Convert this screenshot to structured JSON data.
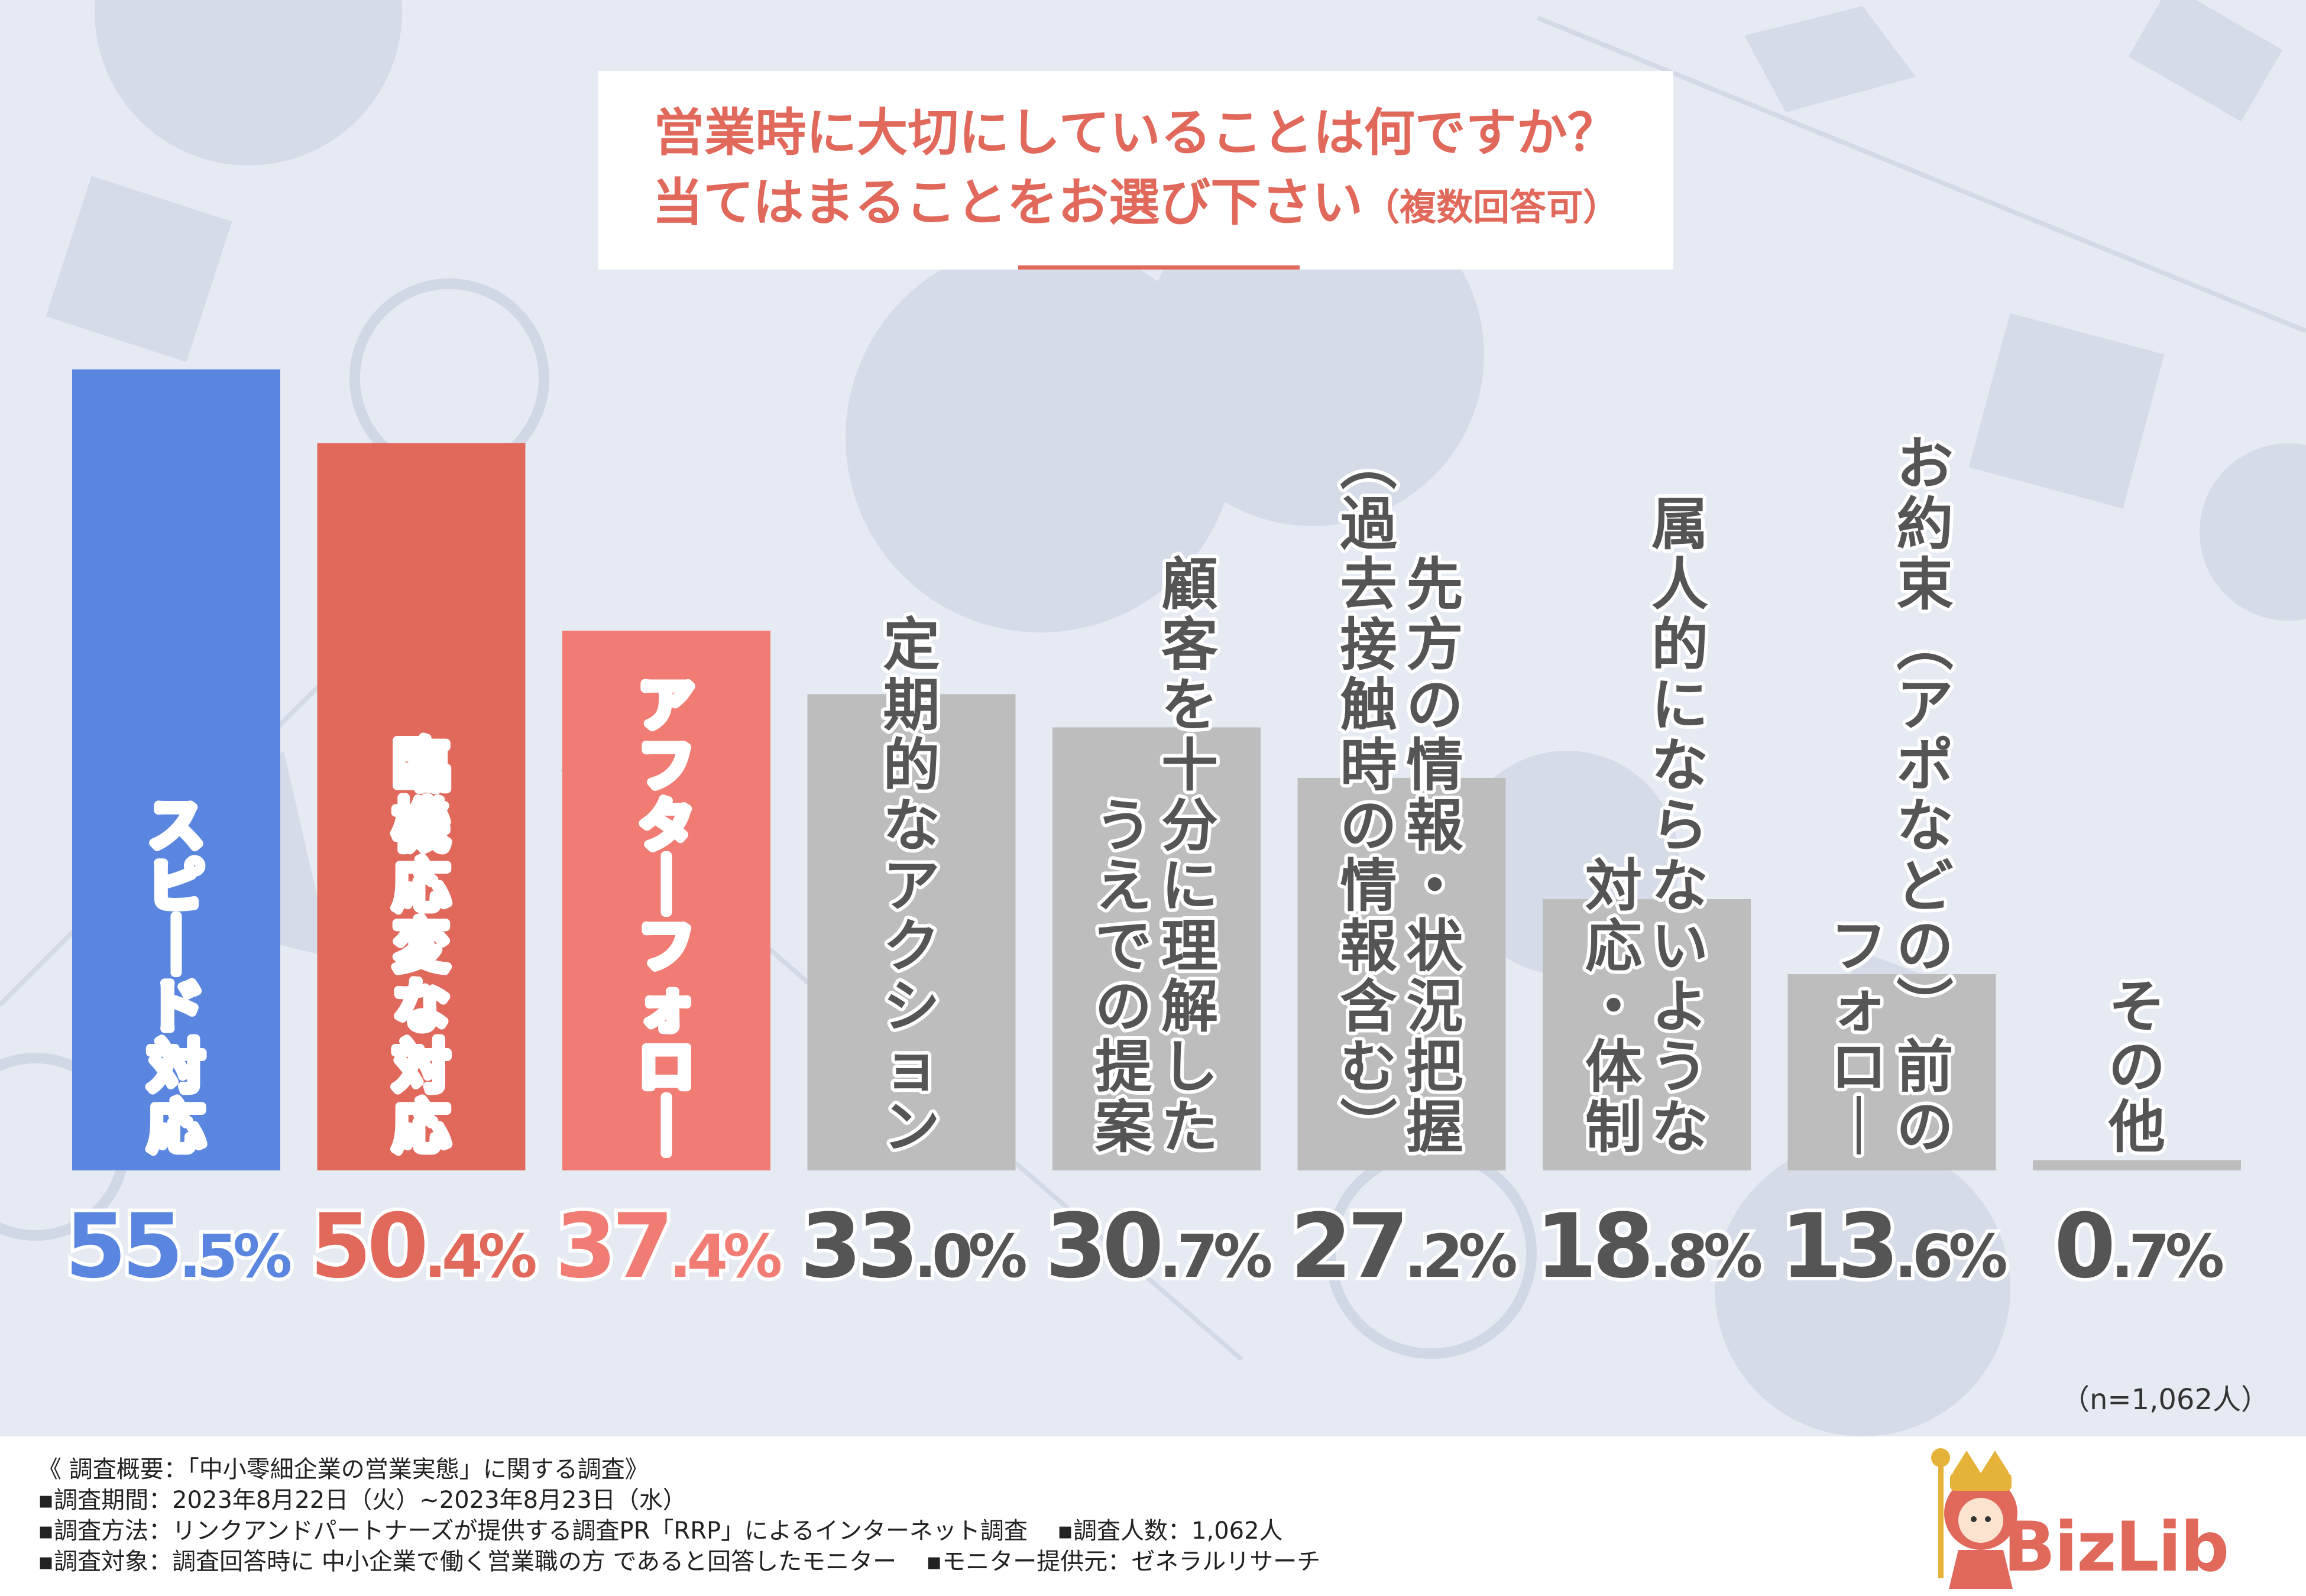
{
  "title": {
    "line1": "営業時に大切にしていることは何ですか？",
    "line2_main": "当てはまることをお選び下さい",
    "line2_note": "（複数回答可）"
  },
  "sample_note": "（n=1,062人）",
  "colors": {
    "blue": "#5a86e0",
    "red": "#e0695c",
    "salmon": "#f07c74",
    "gray": "#bdbdbd",
    "gray_text": "#555555",
    "background": "#e6ebf3"
  },
  "chart_data": {
    "type": "bar",
    "title": "営業時に大切にしていることは何ですか？当てはまることをお選び下さい（複数回答可）",
    "unit": "%",
    "ylim": [
      0,
      55.5
    ],
    "categories": [
      [
        "スピード対応"
      ],
      [
        "臨機応変な対応"
      ],
      [
        "アフターフォロー"
      ],
      [
        "定期的なアクション"
      ],
      [
        "顧客を十分に理解した",
        "うえでの提案"
      ],
      [
        "先方の情報・状況把握",
        "（過去接触時の情報含む）"
      ],
      [
        "属人的にならないような",
        "対応・体制"
      ],
      [
        "お約束（アポなどの）前の",
        "フォロー"
      ],
      [
        "その他"
      ]
    ],
    "values": [
      55.5,
      50.4,
      37.4,
      33.0,
      30.7,
      27.2,
      18.8,
      13.6,
      0.7
    ],
    "labels": [
      "55.5%",
      "50.4%",
      "37.4%",
      "33.0%",
      "30.7%",
      "27.2%",
      "18.8%",
      "13.6%",
      "0.7%"
    ],
    "bar_colors": [
      "#5a86e0",
      "#e0695c",
      "#f07c74",
      "#bdbdbd",
      "#bdbdbd",
      "#bdbdbd",
      "#bdbdbd",
      "#bdbdbd",
      "#bdbdbd"
    ],
    "value_colors": [
      "#5a86e0",
      "#e0695c",
      "#f07c74",
      "#555555",
      "#555555",
      "#555555",
      "#555555",
      "#555555",
      "#555555"
    ],
    "label_colors": [
      "#ffffff",
      "#ffffff",
      "#ffffff",
      "#555555",
      "#555555",
      "#555555",
      "#555555",
      "#555555",
      "#555555"
    ]
  },
  "footer": {
    "overview": "《 調査概要：「中小零細企業の営業実態」に関する調査》",
    "period": "▪調査期間：2023年8月22日（火）~2023年8月23日（水）",
    "method": "▪調査方法：リンクアンドパートナーズが提供する調査PR「RRP」によるインターネット調査",
    "count": "▪調査人数：1,062人",
    "target": "▪調査対象：調査回答時に 中小企業で働く営業職の方 であると回答したモニター",
    "provider": "▪モニター提供元：ゼネラルリサーチ"
  },
  "logo": {
    "text": "BizLib"
  }
}
